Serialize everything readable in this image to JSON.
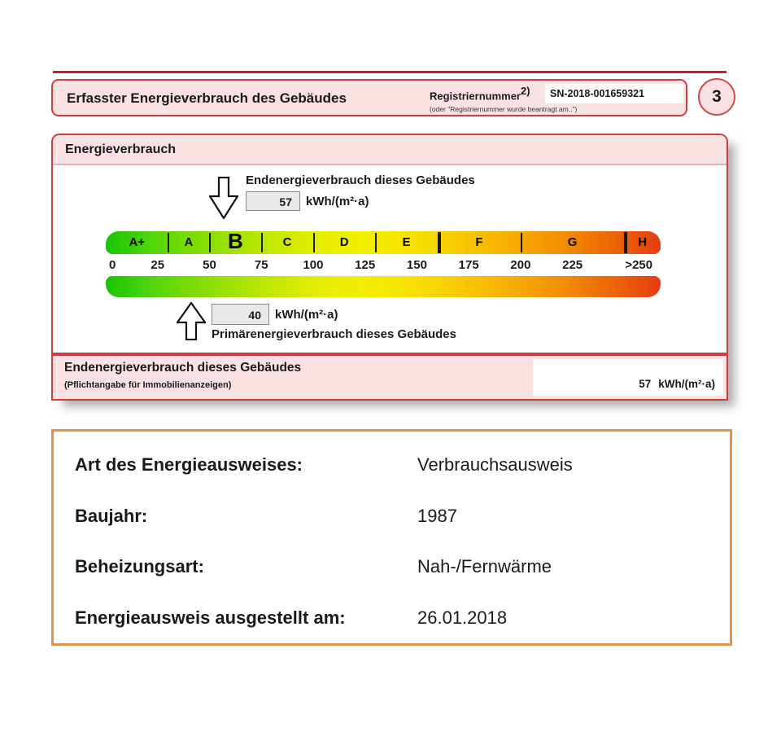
{
  "certificate": {
    "header": {
      "title": "Erfasster Energieverbrauch des Gebäudes",
      "registry_label": "Registriernummer",
      "registry_sup": "2)",
      "registry_note": "(oder \"Registriernummer wurde beantragt am..\")",
      "registry_value": "SN-2018-001659321",
      "page_number": "3"
    },
    "section": {
      "title": "Energieverbrauch",
      "end_energy": {
        "label": "Endenergieverbrauch dieses Gebäudes",
        "value": "57",
        "unit": "kWh/(m²·a)"
      },
      "primary_energy": {
        "label": "Primärenergieverbrauch dieses Gebäudes",
        "value": "40",
        "unit": "kWh/(m²·a)"
      }
    },
    "footer_row": {
      "title": "Endenergieverbrauch dieses Gebäudes",
      "subtitle": "(Pflichtangabe für Immobilienanzeigen)",
      "value": "57",
      "unit": "kWh/(m²·a)"
    }
  },
  "chart_data": {
    "type": "scale",
    "title": "Energieverbrauch",
    "unit": "kWh/(m²·a)",
    "axis_max": 267.5,
    "axis_labels": [
      {
        "label": "0",
        "value": 0
      },
      {
        "label": "25",
        "value": 25
      },
      {
        "label": "50",
        "value": 50
      },
      {
        "label": "75",
        "value": 75
      },
      {
        "label": "100",
        "value": 100
      },
      {
        "label": "125",
        "value": 125
      },
      {
        "label": "150",
        "value": 150
      },
      {
        "label": "175",
        "value": 175
      },
      {
        "label": "200",
        "value": 200
      },
      {
        "label": "225",
        "value": 225
      },
      {
        "label": ">250",
        "value": 257
      }
    ],
    "classes": [
      {
        "letter": "A+",
        "from": 0,
        "to": 30
      },
      {
        "letter": "A",
        "from": 30,
        "to": 50
      },
      {
        "letter": "B",
        "from": 50,
        "to": 75
      },
      {
        "letter": "C",
        "from": 75,
        "to": 100
      },
      {
        "letter": "D",
        "from": 100,
        "to": 130
      },
      {
        "letter": "E",
        "from": 130,
        "to": 160
      },
      {
        "letter": "F",
        "from": 160,
        "to": 200
      },
      {
        "letter": "G",
        "from": 200,
        "to": 250
      },
      {
        "letter": "H",
        "from": 250,
        "to": 267.5
      }
    ],
    "thick_dividers": [
      160,
      250
    ],
    "current_class": "B",
    "markers": [
      {
        "name": "Endenergieverbrauch dieses Gebäudes",
        "value": 57,
        "unit": "kWh/(m²·a)",
        "arrow": "down"
      },
      {
        "name": "Primärenergieverbrauch dieses Gebäudes",
        "value": 40,
        "unit": "kWh/(m²·a)",
        "arrow": "up"
      }
    ],
    "gradient_colors": [
      "#17c400",
      "#73da00",
      "#c3e800",
      "#f3ef00",
      "#f8d200",
      "#f6a700",
      "#f29000",
      "#ea5a0b",
      "#e63c11"
    ]
  },
  "details": {
    "rows": [
      {
        "label": "Art des Energieausweises:",
        "value": "Verbrauchsausweis"
      },
      {
        "label": "Baujahr:",
        "value": "1987"
      },
      {
        "label": "Beheizungsart:",
        "value": "Nah-/Fernwärme"
      },
      {
        "label": "Energieausweis ausgestellt am:",
        "value": "26.01.2018"
      }
    ]
  },
  "colors": {
    "certificate_pink": "#fbe2e2",
    "certificate_red": "#c94040",
    "details_border_orange": "#e2934a",
    "field_grey": "#e9e9e9",
    "scale_green": "#17c400",
    "scale_yellow": "#f3ef00",
    "scale_red": "#e63c11"
  }
}
